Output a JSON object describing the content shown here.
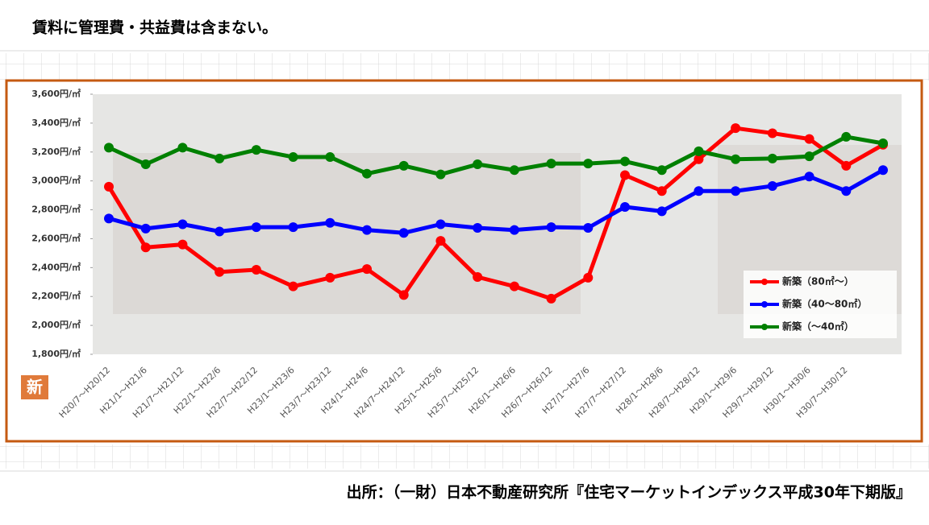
{
  "note": "賃料に管理費・共益費は含まない。",
  "source": "出所：（一財）日本不動産研究所『住宅マーケットインデックス平成30年下期版』",
  "badge": "新",
  "chart_data": {
    "type": "line",
    "categories": [
      "H20/7～H20/12",
      "H21/1～H21/6",
      "H21/7～H21/12",
      "H22/1～H22/6",
      "H22/7～H22/12",
      "H23/1～H23/6",
      "H23/7～H23/12",
      "H24/1～H24/6",
      "H24/7～H24/12",
      "H25/1～H25/6",
      "H25/7～H25/12",
      "H26/1～H26/6",
      "H26/7～H26/12",
      "H27/1～H27/6",
      "H27/7～H27/12",
      "H28/1～H28/6",
      "H28/7～H28/12",
      "H29/1～H29/6",
      "H29/7～H29/12",
      "H30/1～H30/6",
      "H30/7～H30/12",
      null
    ],
    "series": [
      {
        "name": "新築（80㎡～）",
        "color": "#ff0000",
        "values": [
          2960,
          2540,
          2560,
          2370,
          2385,
          2270,
          2330,
          2390,
          2210,
          2585,
          2335,
          2270,
          2185,
          2330,
          3040,
          2930,
          3150,
          3365,
          3330,
          3290,
          3105,
          3250
        ]
      },
      {
        "name": "新築（40～80㎡）",
        "color": "#0000ff",
        "values": [
          2740,
          2670,
          2700,
          2650,
          2680,
          2680,
          2710,
          2660,
          2640,
          2700,
          2675,
          2660,
          2680,
          2675,
          2820,
          2790,
          2930,
          2930,
          2965,
          3030,
          2930,
          3075
        ]
      },
      {
        "name": "新築（～40㎡）",
        "color": "#008000",
        "values": [
          3230,
          3115,
          3230,
          3155,
          3215,
          3165,
          3165,
          3050,
          3105,
          3045,
          3115,
          3075,
          3120,
          3120,
          3135,
          3075,
          3205,
          3150,
          3155,
          3170,
          3305,
          3260
        ]
      }
    ],
    "ylim": [
      1800,
      3600
    ],
    "yticks": [
      {
        "value": 1800,
        "label": "1,800円/㎡"
      },
      {
        "value": 2000,
        "label": "2,000円/㎡"
      },
      {
        "value": 2200,
        "label": "2,200円/㎡"
      },
      {
        "value": 2400,
        "label": "2,400円/㎡"
      },
      {
        "value": 2600,
        "label": "2,600円/㎡"
      },
      {
        "value": 2800,
        "label": "2,800円/㎡"
      },
      {
        "value": 3000,
        "label": "3,000円/㎡"
      },
      {
        "value": 3200,
        "label": "3,200円/㎡"
      },
      {
        "value": 3400,
        "label": "3,400円/㎡"
      },
      {
        "value": 3600,
        "label": "3,600円/㎡"
      }
    ],
    "legend": "lower-right"
  }
}
